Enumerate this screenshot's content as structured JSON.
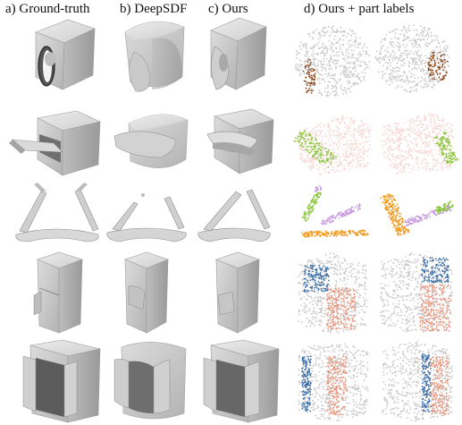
{
  "columns": {
    "a": "a) Ground-truth",
    "b": "b) DeepSDF",
    "c": "c) Ours",
    "d": "d) Ours + part labels"
  },
  "rows": [
    {
      "object": "microwave-front-view"
    },
    {
      "object": "microwave-open-door"
    },
    {
      "object": "eyeglasses"
    },
    {
      "object": "refrigerator"
    },
    {
      "object": "cabinet-double-door"
    }
  ],
  "colors": {
    "mesh_fill": "#d9d9d9",
    "mesh_shade": "#a6a6a6",
    "body_points": "#c8c8c8",
    "body_points_pink": "#f6d6d2",
    "brown": "#8b4a1e",
    "green": "#8cc63e",
    "orange": "#f29a1e",
    "purple": "#c89adf",
    "blue": "#3d6fa8",
    "salmon": "#e9937a"
  }
}
